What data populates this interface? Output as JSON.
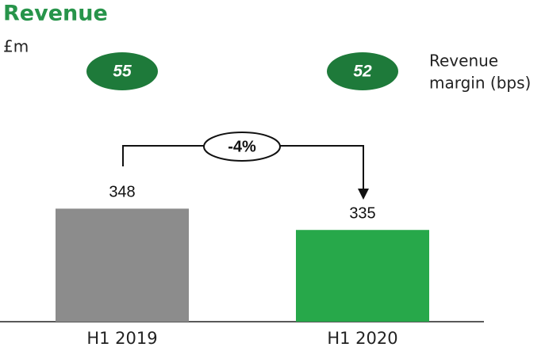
{
  "chart_data": {
    "type": "bar",
    "title": "Revenue",
    "subtitle": "£m",
    "categories": [
      "H1 2019",
      "H1 2020"
    ],
    "values": [
      348,
      335
    ],
    "colors": [
      "#8c8c8c",
      "#27a84a"
    ],
    "ylim": [
      279,
      427
    ],
    "margin_label": [
      "Revenue",
      "margin (bps)"
    ],
    "margin_values": [
      55,
      52
    ],
    "change": {
      "value": -4,
      "label": "-4%"
    }
  }
}
